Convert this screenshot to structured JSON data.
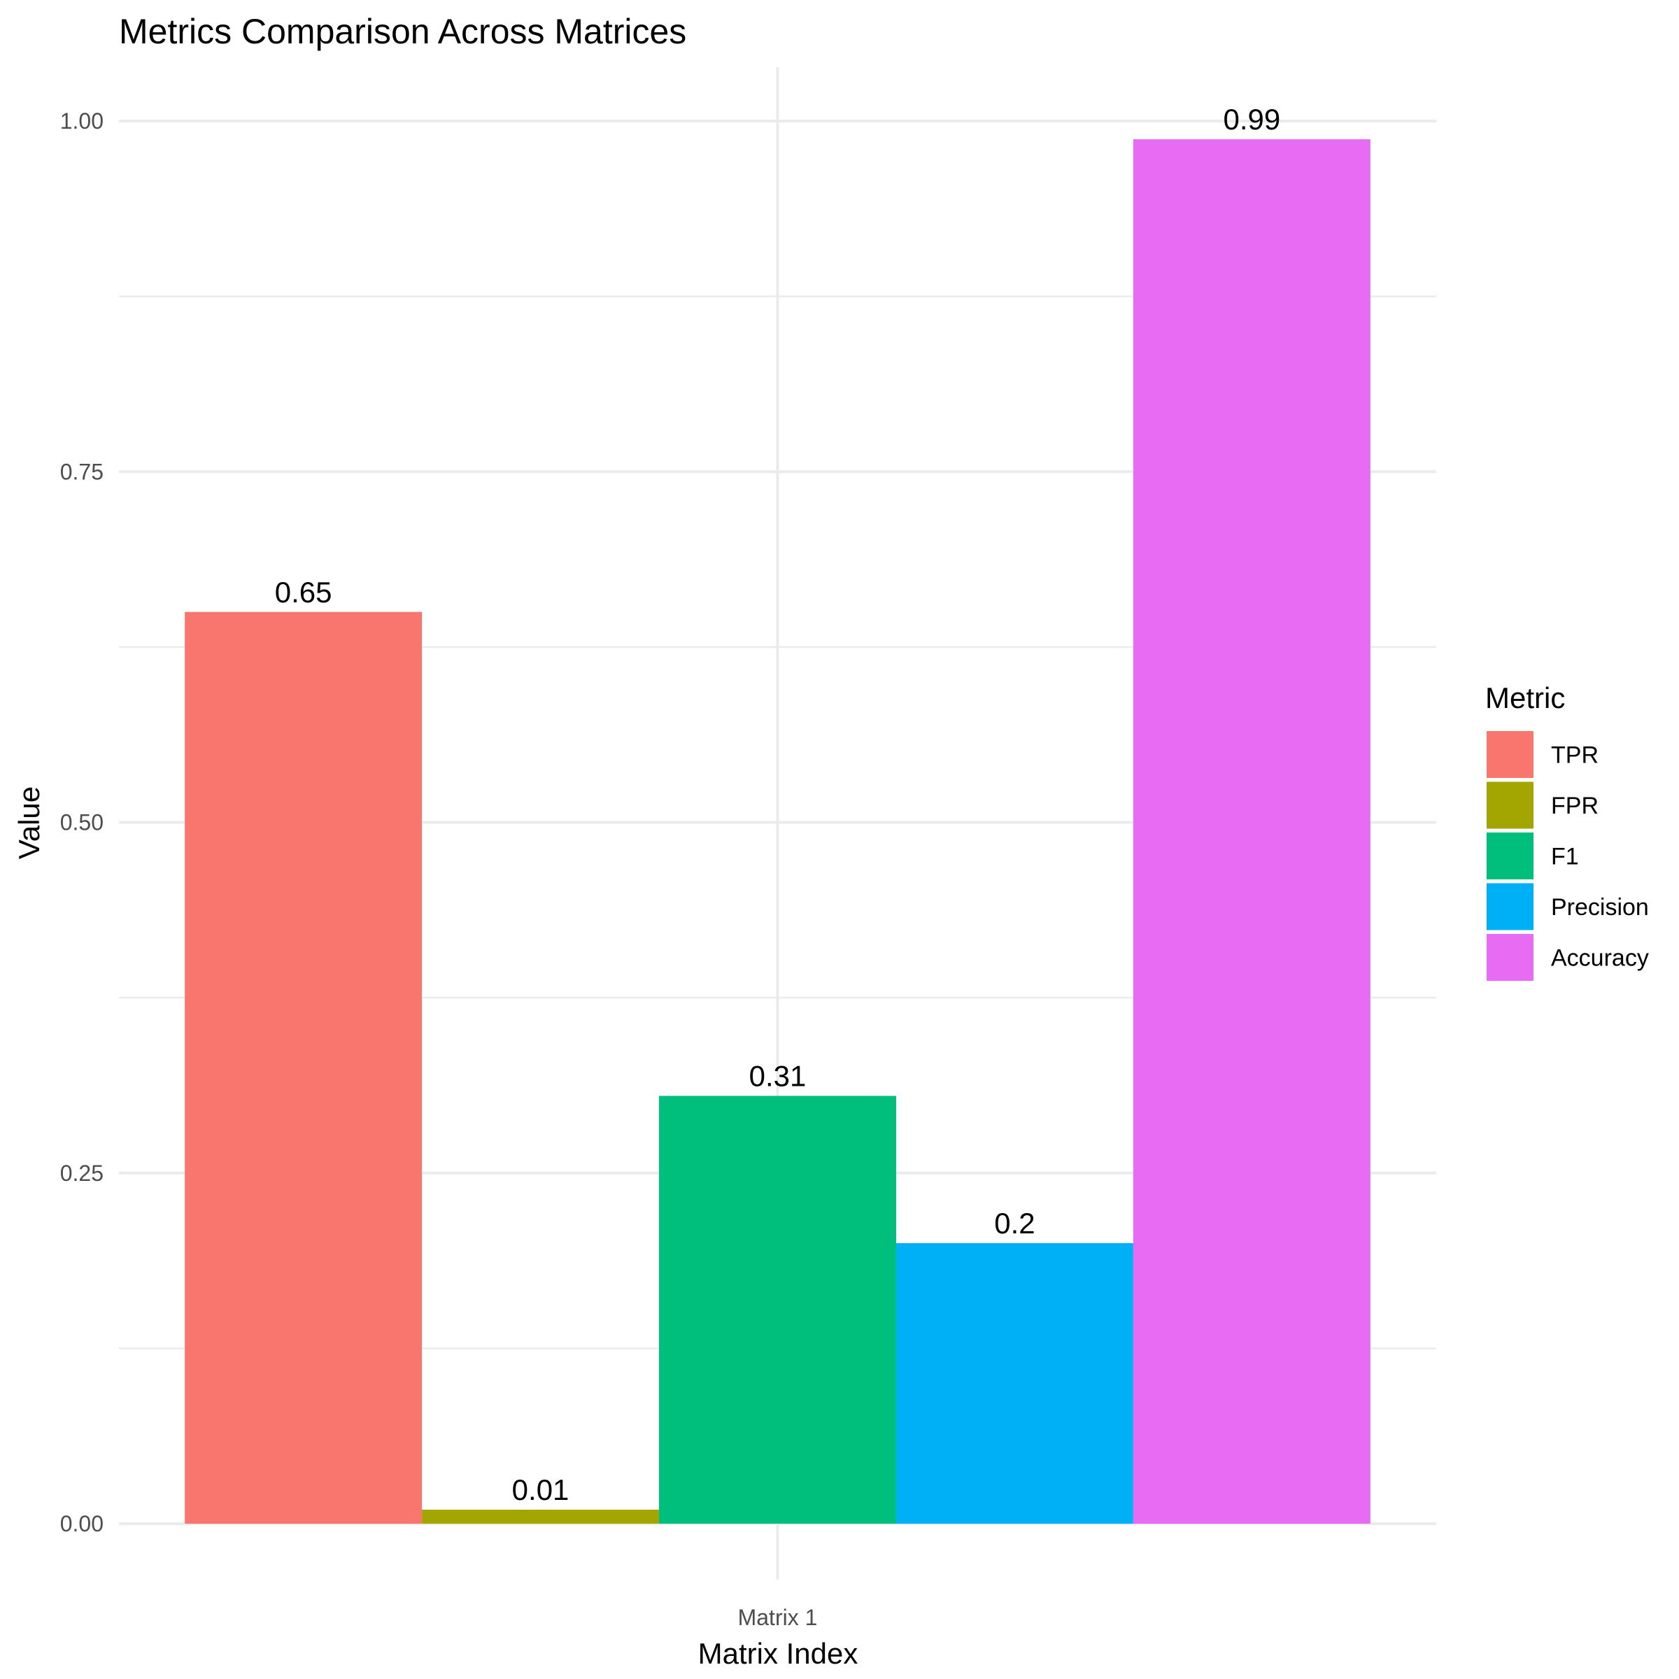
{
  "chart_data": {
    "type": "bar",
    "title": "Metrics Comparison Across Matrices",
    "xlabel": "Matrix Index",
    "ylabel": "Value",
    "categories": [
      "Matrix 1"
    ],
    "ylim": [
      0,
      1.0
    ],
    "yticks": [
      "0.00",
      "0.25",
      "0.50",
      "0.75",
      "1.00"
    ],
    "grid": true,
    "legend": {
      "title": "Metric",
      "placement": "right"
    },
    "series": [
      {
        "name": "TPR",
        "values": [
          0.65
        ],
        "label": "0.65",
        "color": "#F8766D"
      },
      {
        "name": "FPR",
        "values": [
          0.01
        ],
        "label": "0.01",
        "color": "#A3A500"
      },
      {
        "name": "F1",
        "values": [
          0.305
        ],
        "label": "0.31",
        "color": "#00BF7D"
      },
      {
        "name": "Precision",
        "values": [
          0.2
        ],
        "label": "0.2",
        "color": "#00B0F6"
      },
      {
        "name": "Accuracy",
        "values": [
          0.987
        ],
        "label": "0.99",
        "color": "#E76BF3"
      }
    ]
  }
}
